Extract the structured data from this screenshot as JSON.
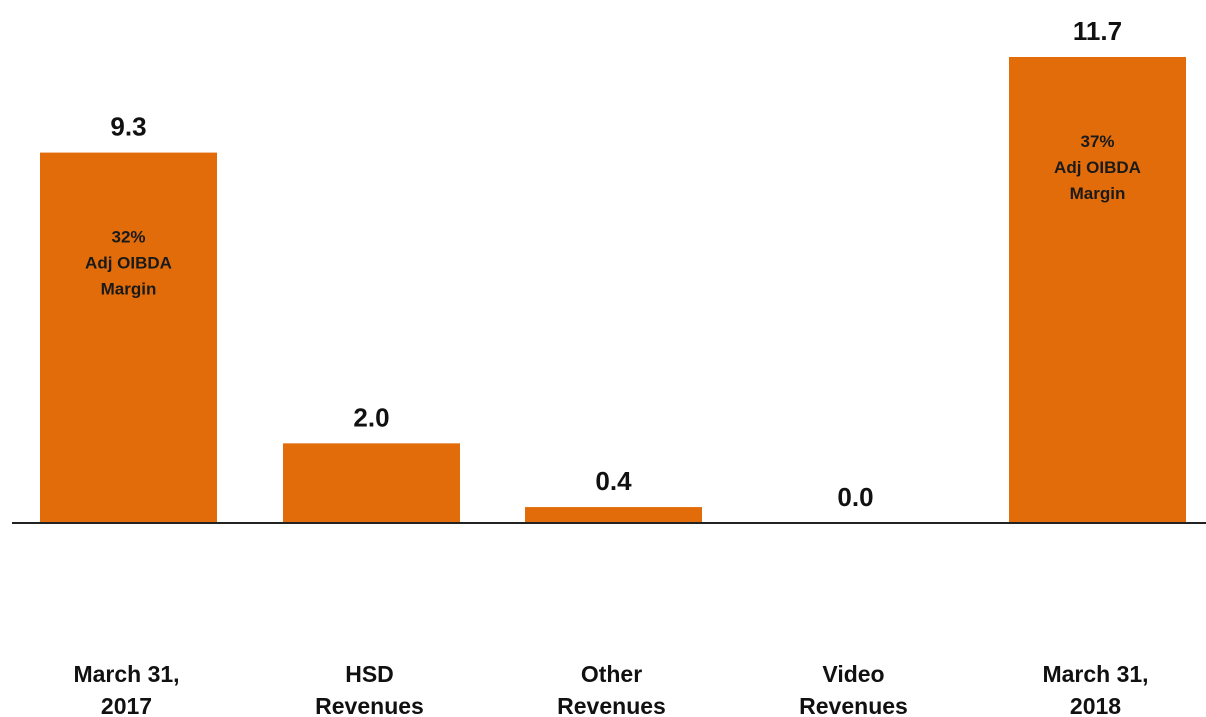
{
  "chart_data": {
    "type": "bar",
    "categories": [
      [
        "March 31,",
        "2017"
      ],
      [
        "HSD",
        "Revenues"
      ],
      [
        "Other",
        "Revenues"
      ],
      [
        "Video",
        "Revenues"
      ],
      [
        "March 31,",
        "2018"
      ]
    ],
    "values": [
      9.3,
      2.0,
      0.4,
      0.0,
      11.7
    ],
    "value_labels": [
      "9.3",
      "2.0",
      "0.4",
      "0.0",
      "11.7"
    ],
    "annotations": [
      {
        "bar_index": 0,
        "lines": [
          "32%",
          "Adj OIBDA",
          "Margin"
        ]
      },
      {
        "bar_index": 4,
        "lines": [
          "37%",
          "Adj OIBDA",
          "Margin"
        ]
      }
    ],
    "title": "",
    "xlabel": "",
    "ylabel": "",
    "ylim": [
      0,
      11.7
    ],
    "grid": false,
    "bar_color": "#E36C0A",
    "axis_color": "#222222"
  }
}
